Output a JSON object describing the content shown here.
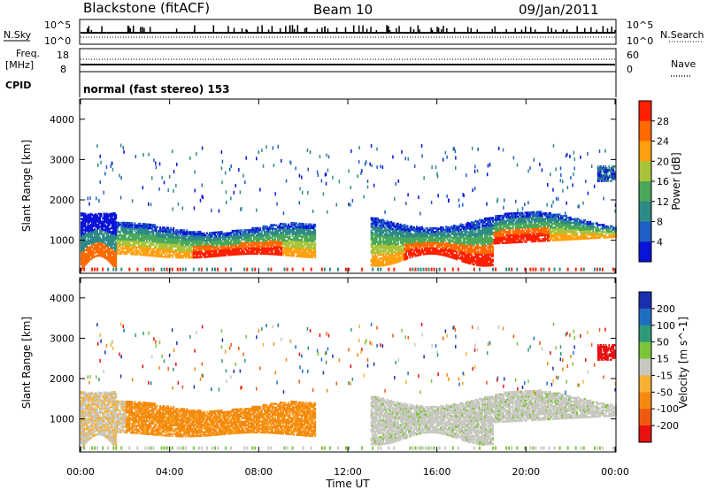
{
  "header": {
    "station": "Blackstone (fitACF)",
    "beam": "Beam 10",
    "date": "09/Jan/2011"
  },
  "top_panels": {
    "nsky_label": "N.Sky",
    "nsky_ticks": [
      "10^5",
      "10^0"
    ],
    "nsearch_label": "N.Search",
    "nsearch_ticks": [
      "10^5",
      "10^0"
    ],
    "freq_label": "Freq.",
    "freq_unit": "[MHz]",
    "freq_ticks": [
      "18",
      "8"
    ],
    "nave_label": "Nave",
    "nave_ticks": [
      "60",
      "0"
    ],
    "cpid_label": "CPID",
    "cpid_value": "normal (fast stereo) 153"
  },
  "chart_data": [
    {
      "type": "heatmap",
      "name": "power",
      "ylabel": "Slant Range [km]",
      "ylim": [
        180,
        4500
      ],
      "y_ticks": [
        "1000",
        "2000",
        "3000",
        "4000"
      ],
      "x_ticks": [
        "00:00",
        "04:00",
        "08:00",
        "12:00",
        "16:00",
        "20:00",
        "00:00"
      ],
      "colorbar": {
        "label": "Power [dB]",
        "ticks": [
          "4",
          "8",
          "12",
          "16",
          "20",
          "24",
          "28"
        ],
        "colors": [
          "#0a14d8",
          "#1f5fc4",
          "#2e8a86",
          "#4aa85a",
          "#a8c43a",
          "#ffa010",
          "#ff6a00",
          "#ff2000"
        ]
      },
      "regions": [
        {
          "t0": 0.0,
          "t1": 1.6,
          "r0": 250,
          "r1": 1700,
          "level": "mixed"
        },
        {
          "t0": 1.6,
          "t1": 10.5,
          "r0": 500,
          "r1": 1600,
          "level": "mixed"
        },
        {
          "t0": 13.0,
          "t1": 23.2,
          "r0": 400,
          "r1": 1750,
          "level": "mixed"
        },
        {
          "t0": 23.2,
          "t1": 24.0,
          "r0": 2400,
          "r1": 2800,
          "level": "low"
        }
      ]
    },
    {
      "type": "heatmap",
      "name": "velocity",
      "ylabel": "Slant Range [km]",
      "ylim": [
        180,
        4500
      ],
      "y_ticks": [
        "1000",
        "2000",
        "3000",
        "4000"
      ],
      "x_ticks": [
        "00:00",
        "04:00",
        "08:00",
        "12:00",
        "16:00",
        "20:00",
        "00:00"
      ],
      "xlabel": "Time UT",
      "colorbar": {
        "label": "Velocity [m s^-1]",
        "ticks": [
          "200",
          "100",
          "50",
          "15",
          "-15",
          "-50",
          "-100",
          "-200"
        ],
        "colors": [
          "#1a2fb0",
          "#1f6fc0",
          "#2e9a7a",
          "#7cc43a",
          "#c8c8c0",
          "#f6b032",
          "#f58a10",
          "#f05a10",
          "#e81010"
        ]
      },
      "regions": [
        {
          "t0": 0.0,
          "t1": 2.0,
          "r0": 300,
          "r1": 1200,
          "level": "near-zero"
        },
        {
          "t0": 2.0,
          "t1": 10.5,
          "r0": 500,
          "r1": 1450,
          "level": "negative"
        },
        {
          "t0": 13.0,
          "t1": 23.5,
          "r0": 400,
          "r1": 1600,
          "level": "near-zero"
        },
        {
          "t0": 23.0,
          "t1": 24.0,
          "r0": 2500,
          "r1": 3000,
          "level": "strong-negative"
        }
      ]
    }
  ]
}
